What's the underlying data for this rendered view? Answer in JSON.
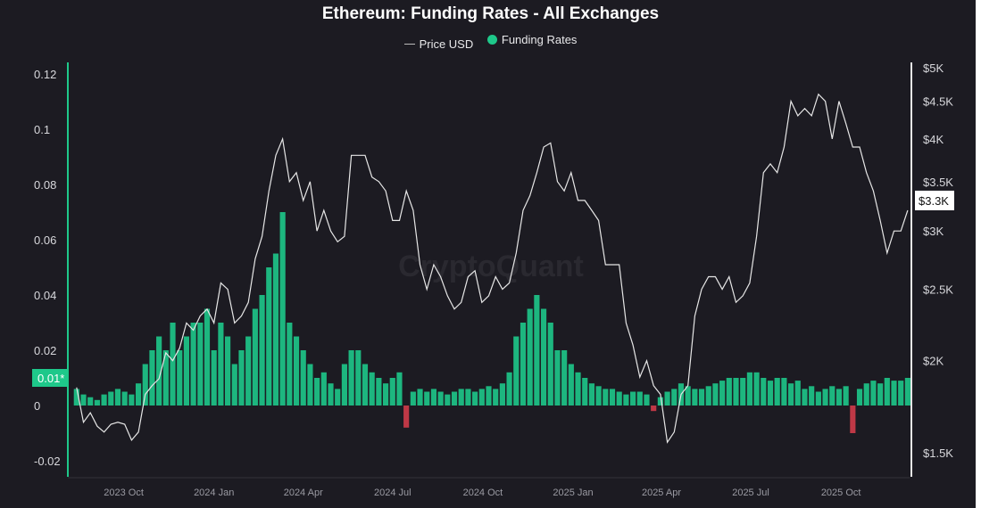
{
  "chart_data": {
    "type": "bar+line",
    "title": "Ethereum: Funding Rates - All Exchanges",
    "legend": {
      "placement": "top-center",
      "entries": [
        "Price USD",
        "Funding Rates"
      ]
    },
    "watermark": "CryptoQuant",
    "left_axis": {
      "ticks": [
        "0.12",
        "0.1",
        "0.08",
        "0.06",
        "0.04",
        "0.02",
        "0",
        "-0.02"
      ],
      "values": [
        0.12,
        0.1,
        0.08,
        0.06,
        0.04,
        0.02,
        0,
        -0.02
      ],
      "range": [
        -0.025,
        0.125
      ],
      "current_label": "0.01*",
      "current_value": 0.01
    },
    "right_axis": {
      "scale": "log",
      "ticks": [
        "$5K",
        "$4.5K",
        "$4K",
        "$3.5K",
        "$3K",
        "$2.5K",
        "$2K",
        "$1.5K"
      ],
      "values": [
        5000,
        4500,
        4000,
        3500,
        3000,
        2500,
        2000,
        1500
      ],
      "current_label": "$3.3K",
      "current_value": 3300
    },
    "x_axis": {
      "range": [
        "2023-08-06",
        "2025-12-09"
      ],
      "ticks": [
        [
          "2023-10-01",
          "2023 Oct"
        ],
        [
          "2024-01-01",
          "2024 Jan"
        ],
        [
          "2024-04-01",
          "2024 Apr"
        ],
        [
          "2024-07-01",
          "2024 Jul"
        ],
        [
          "2024-10-01",
          "2024 Oct"
        ],
        [
          "2025-01-01",
          "2025 Jan"
        ],
        [
          "2025-04-01",
          "2025 Apr"
        ],
        [
          "2025-07-01",
          "2025 Jul"
        ],
        [
          "2025-10-01",
          "2025 Oct"
        ]
      ]
    },
    "colors": {
      "price": "#e6e6e6",
      "funding_positive": "#1ec88a",
      "funding_negative": "#d23c4a",
      "background": "#1c1b22"
    },
    "start_date": "2023-08-14",
    "interval_days": 7,
    "price_usd": [
      1840,
      1650,
      1700,
      1630,
      1600,
      1640,
      1650,
      1640,
      1560,
      1600,
      1800,
      1850,
      1890,
      2050,
      2000,
      2080,
      2250,
      2200,
      2300,
      2350,
      2250,
      2550,
      2500,
      2250,
      2300,
      2400,
      2750,
      2950,
      3400,
      3800,
      4000,
      3500,
      3600,
      3300,
      3500,
      3000,
      3200,
      3000,
      2900,
      2950,
      3800,
      3800,
      3800,
      3550,
      3500,
      3400,
      3100,
      3100,
      3400,
      3200,
      2700,
      2500,
      2700,
      2600,
      2450,
      2350,
      2400,
      2600,
      2650,
      2400,
      2450,
      2600,
      2500,
      2550,
      2800,
      3200,
      3350,
      3600,
      3900,
      3950,
      3500,
      3400,
      3600,
      3300,
      3300,
      3200,
      3100,
      2700,
      2700,
      2700,
      2250,
      2100,
      1900,
      2000,
      1850,
      1800,
      1550,
      1600,
      1800,
      1850,
      2300,
      2500,
      2600,
      2600,
      2500,
      2600,
      2400,
      2450,
      2550,
      2950,
      3600,
      3700,
      3600,
      3900,
      4500,
      4300,
      4400,
      4300,
      4600,
      4500,
      4000,
      4500,
      4200,
      3900,
      3900,
      3600,
      3400,
      3100,
      2800,
      3000,
      3000,
      3200
    ],
    "funding_rates": [
      0.006,
      0.004,
      0.003,
      0.002,
      0.004,
      0.005,
      0.006,
      0.005,
      0.004,
      0.008,
      0.015,
      0.02,
      0.025,
      0.02,
      0.03,
      0.02,
      0.025,
      0.03,
      0.03,
      0.035,
      0.02,
      0.03,
      0.025,
      0.015,
      0.02,
      0.025,
      0.035,
      0.04,
      0.05,
      0.055,
      0.07,
      0.03,
      0.025,
      0.02,
      0.015,
      0.01,
      0.012,
      0.008,
      0.006,
      0.015,
      0.02,
      0.02,
      0.015,
      0.012,
      0.01,
      0.008,
      0.01,
      0.012,
      -0.008,
      0.005,
      0.006,
      0.005,
      0.006,
      0.005,
      0.004,
      0.005,
      0.006,
      0.006,
      0.005,
      0.006,
      0.007,
      0.006,
      0.008,
      0.012,
      0.025,
      0.03,
      0.035,
      0.04,
      0.035,
      0.03,
      0.02,
      0.02,
      0.015,
      0.012,
      0.01,
      0.008,
      0.007,
      0.006,
      0.006,
      0.005,
      0.004,
      0.005,
      0.005,
      0.004,
      -0.002,
      0.003,
      0.005,
      0.006,
      0.008,
      0.007,
      0.006,
      0.006,
      0.007,
      0.008,
      0.009,
      0.01,
      0.01,
      0.01,
      0.012,
      0.012,
      0.01,
      0.009,
      0.01,
      0.01,
      0.008,
      0.009,
      0.006,
      0.007,
      0.005,
      0.006,
      0.007,
      0.006,
      0.007,
      -0.01,
      0.006,
      0.008,
      0.009,
      0.008,
      0.01,
      0.009,
      0.009,
      0.01
    ]
  }
}
